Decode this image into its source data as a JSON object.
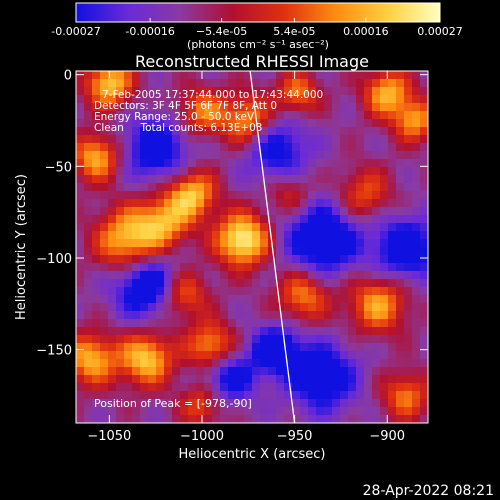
{
  "chart_data": {
    "type": "heatmap",
    "title": "Reconstructed RHESSI Image",
    "xlabel": "Heliocentric X (arcsec)",
    "ylabel": "Heliocentric Y (arcsec)",
    "xlim": [
      -1068,
      -878
    ],
    "ylim": [
      -190,
      2
    ],
    "x_ticks": [
      {
        "value": -1050,
        "label": "−1050"
      },
      {
        "value": -1000,
        "label": "−1000"
      },
      {
        "value": -950,
        "label": "−950"
      },
      {
        "value": -900,
        "label": "−900"
      }
    ],
    "y_ticks": [
      {
        "value": 0,
        "label": "0"
      },
      {
        "value": -50,
        "label": "−50"
      },
      {
        "value": -100,
        "label": "−100"
      },
      {
        "value": -150,
        "label": "−150"
      }
    ],
    "annotations": [
      "7-Feb-2005 17:37:44.000 to 17:43:44.000",
      "Detectors: 3F 4F 5F 6F 7F 8F, Att 0",
      "Energy Range: 25.0 - 50.0 keV",
      "Clean     Total counts: 6.13E+03"
    ],
    "peak_label": "Position of Peak = [-978,-90]",
    "peak": {
      "x": -978,
      "y": -90
    },
    "limb_line": [
      {
        "x": -974,
        "y": 2
      },
      {
        "x": -950,
        "y": -190
      }
    ],
    "colorbar": {
      "range": [
        -0.00027,
        0.00027
      ],
      "tick_values": [
        -0.00027,
        -0.00016,
        -5.4e-05,
        5.4e-05,
        0.00016,
        0.00027
      ],
      "tick_labels": [
        "-0.00027",
        "-0.00016",
        "−5.4e-05",
        "5.4e-05",
        "0.00016",
        "0.00027"
      ],
      "units_label": "(photons cm⁻² s⁻¹ asec⁻²)",
      "colors": [
        "#1010e0",
        "#6a2ad8",
        "#8a3aa0",
        "#b01030",
        "#e03010",
        "#ff8c10",
        "#ffd040",
        "#ffffc0"
      ]
    },
    "sources": [
      {
        "x": -1050,
        "y": -5,
        "amp": 1.0,
        "r": 9
      },
      {
        "x": -1057,
        "y": -45,
        "amp": 0.9,
        "r": 9
      },
      {
        "x": -1040,
        "y": -90,
        "amp": 1.0,
        "r": 12
      },
      {
        "x": -1020,
        "y": -80,
        "amp": 0.8,
        "r": 10
      },
      {
        "x": -1005,
        "y": -65,
        "amp": 0.95,
        "r": 9
      },
      {
        "x": -1010,
        "y": -120,
        "amp": 0.7,
        "r": 9
      },
      {
        "x": -978,
        "y": -90,
        "amp": 1.25,
        "r": 10
      },
      {
        "x": -975,
        "y": -25,
        "amp": 0.85,
        "r": 10
      },
      {
        "x": -1000,
        "y": -20,
        "amp": 0.7,
        "r": 9
      },
      {
        "x": -1030,
        "y": -155,
        "amp": 1.0,
        "r": 10
      },
      {
        "x": -1060,
        "y": -155,
        "amp": 0.9,
        "r": 10
      },
      {
        "x": -995,
        "y": -148,
        "amp": 0.85,
        "r": 9
      },
      {
        "x": -1000,
        "y": -180,
        "amp": 0.6,
        "r": 8
      },
      {
        "x": -945,
        "y": -120,
        "amp": 0.75,
        "r": 10
      },
      {
        "x": -948,
        "y": -10,
        "amp": 0.7,
        "r": 8
      },
      {
        "x": -952,
        "y": -65,
        "amp": 0.45,
        "r": 8
      },
      {
        "x": -900,
        "y": -10,
        "amp": 0.9,
        "r": 9
      },
      {
        "x": -885,
        "y": -25,
        "amp": 0.8,
        "r": 8
      },
      {
        "x": -912,
        "y": -65,
        "amp": 0.6,
        "r": 10
      },
      {
        "x": -905,
        "y": -125,
        "amp": 0.85,
        "r": 11
      },
      {
        "x": -890,
        "y": -175,
        "amp": 0.7,
        "r": 9
      },
      {
        "x": -1025,
        "y": -40,
        "amp": -0.8,
        "r": 12
      },
      {
        "x": -1030,
        "y": -115,
        "amp": -0.9,
        "r": 12
      },
      {
        "x": -960,
        "y": -40,
        "amp": -0.7,
        "r": 12
      },
      {
        "x": -935,
        "y": -90,
        "amp": -0.9,
        "r": 14
      },
      {
        "x": -935,
        "y": -165,
        "amp": -0.8,
        "r": 13
      },
      {
        "x": -985,
        "y": -165,
        "amp": -0.7,
        "r": 10
      },
      {
        "x": -890,
        "y": -95,
        "amp": -0.85,
        "r": 12
      },
      {
        "x": -960,
        "y": -150,
        "amp": -0.9,
        "r": 9
      }
    ]
  },
  "footer": {
    "timestamp": "28-Apr-2022 08:21"
  }
}
